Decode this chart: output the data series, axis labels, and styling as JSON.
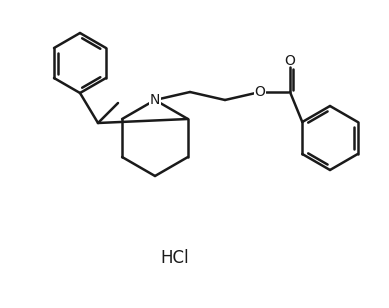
{
  "background_color": "#ffffff",
  "line_color": "#1a1a1a",
  "line_width": 1.8,
  "text_color": "#1a1a1a",
  "hcl_text": "HCl",
  "N_label": "N",
  "O_label": "O",
  "O_double_label": "O"
}
